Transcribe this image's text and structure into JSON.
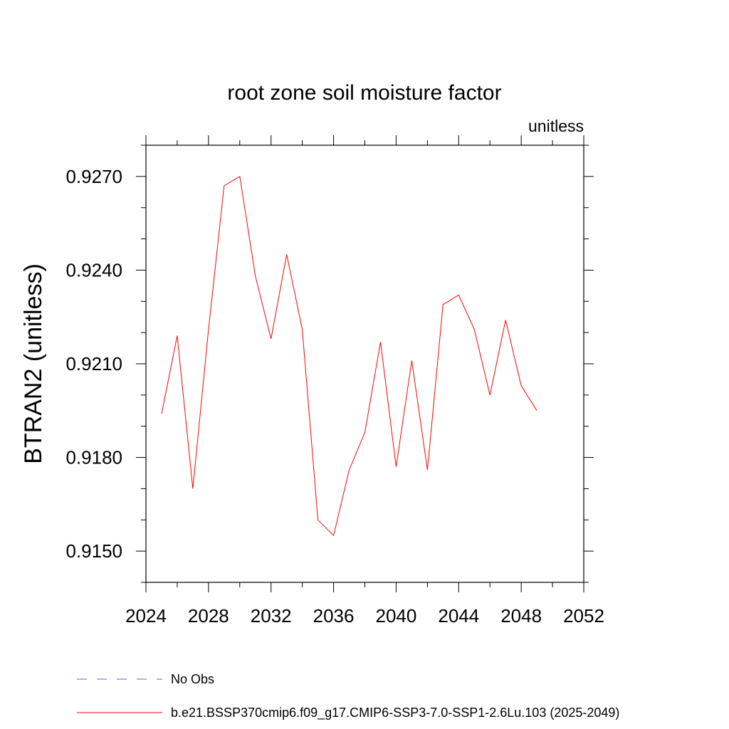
{
  "chart_data": {
    "type": "line",
    "title": "root zone soil moisture factor",
    "units_label": "unitless",
    "ylabel": "BTRAN2  (unitless)",
    "xlabel": "",
    "xlim": [
      2024,
      2052
    ],
    "ylim": [
      0.914,
      0.928
    ],
    "x_ticks": [
      2024,
      2028,
      2032,
      2036,
      2040,
      2044,
      2048,
      2052
    ],
    "y_ticks": [
      "0.9150",
      "0.9180",
      "0.9210",
      "0.9240",
      "0.9270"
    ],
    "x_minor_step": 2,
    "y_minor_step": 0.001,
    "series": [
      {
        "name": "b.e21.BSSP370cmip6.f09_g17.CMIP6-SSP3-7.0-SSP1-2.6Lu.103 (2025-2049)",
        "color": "#ff0000",
        "style": "solid",
        "x": [
          2025,
          2026,
          2027,
          2028,
          2029,
          2030,
          2031,
          2032,
          2033,
          2034,
          2035,
          2036,
          2037,
          2038,
          2039,
          2040,
          2041,
          2042,
          2043,
          2044,
          2045,
          2046,
          2047,
          2048,
          2049
        ],
        "values": [
          0.9194,
          0.9219,
          0.917,
          0.9221,
          0.9267,
          0.927,
          0.9238,
          0.9218,
          0.9245,
          0.9221,
          0.916,
          0.9155,
          0.9176,
          0.9188,
          0.9217,
          0.9177,
          0.9211,
          0.9176,
          0.9229,
          0.9232,
          0.9221,
          0.92,
          0.9224,
          0.9203,
          0.9195
        ]
      }
    ],
    "legend": [
      {
        "label": "No Obs",
        "color": "#6a5acd",
        "style": "dashed"
      },
      {
        "label": "b.e21.BSSP370cmip6.f09_g17.CMIP6-SSP3-7.0-SSP1-2.6Lu.103 (2025-2049)",
        "color": "#ff0000",
        "style": "solid"
      }
    ]
  }
}
